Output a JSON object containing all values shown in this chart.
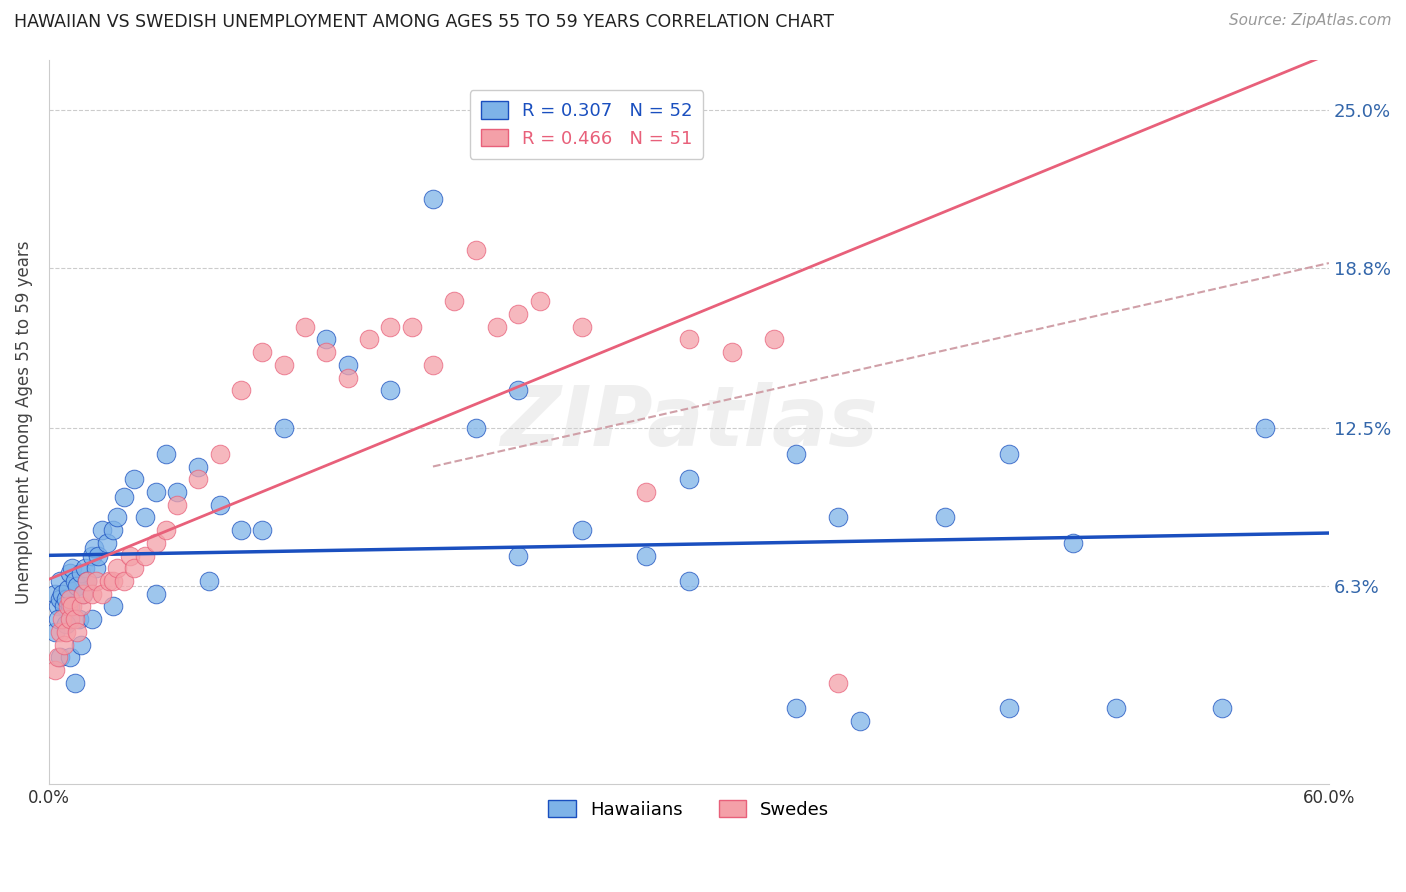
{
  "title": "HAWAIIAN VS SWEDISH UNEMPLOYMENT AMONG AGES 55 TO 59 YEARS CORRELATION CHART",
  "source": "Source: ZipAtlas.com",
  "ylabel": "Unemployment Among Ages 55 to 59 years",
  "ytick_labels": [
    "6.3%",
    "12.5%",
    "18.8%",
    "25.0%"
  ],
  "ytick_values": [
    6.3,
    12.5,
    18.8,
    25.0
  ],
  "xlim": [
    0.0,
    60.0
  ],
  "ylim": [
    -1.5,
    27.0
  ],
  "legend1_R": "0.307",
  "legend1_N": "52",
  "legend2_R": "0.466",
  "legend2_N": "51",
  "legend1_label": "Hawaiians",
  "legend2_label": "Swedes",
  "blue_color": "#7EB3E8",
  "pink_color": "#F4A0A8",
  "trend_blue": "#1A4FBF",
  "trend_pink": "#E8607A",
  "trend_dashed_color": "#D0A0A8",
  "background_color": "#FFFFFF",
  "watermark": "ZIPatlas",
  "hawaiian_x": [
    0.3,
    0.4,
    0.5,
    0.5,
    0.6,
    0.7,
    0.8,
    0.9,
    1.0,
    1.0,
    1.1,
    1.2,
    1.3,
    1.4,
    1.5,
    1.6,
    1.7,
    1.8,
    2.0,
    2.1,
    2.2,
    2.3,
    2.5,
    2.7,
    3.0,
    3.2,
    3.5,
    4.0,
    4.5,
    5.0,
    5.5,
    6.0,
    7.0,
    8.0,
    9.0,
    10.0,
    11.0,
    13.0,
    14.0,
    16.0,
    18.0,
    20.0,
    22.0,
    25.0,
    28.0,
    30.0,
    35.0,
    37.0,
    42.0,
    45.0,
    48.0,
    57.0
  ],
  "hawaiian_y": [
    6.0,
    5.5,
    5.8,
    6.5,
    6.0,
    5.5,
    5.8,
    6.2,
    5.5,
    6.8,
    7.0,
    6.5,
    6.3,
    5.0,
    6.8,
    6.0,
    7.0,
    6.5,
    7.5,
    7.8,
    7.0,
    7.5,
    8.5,
    8.0,
    8.5,
    9.0,
    9.8,
    10.5,
    9.0,
    10.0,
    11.5,
    10.0,
    11.0,
    9.5,
    8.5,
    8.5,
    12.5,
    16.0,
    15.0,
    14.0,
    21.5,
    12.5,
    14.0,
    8.5,
    7.5,
    10.5,
    11.5,
    9.0,
    9.0,
    11.5,
    8.0,
    12.5
  ],
  "hawaiian_x2": [
    0.3,
    0.4,
    0.5,
    0.8,
    1.0,
    1.2,
    1.5,
    2.0,
    3.0,
    5.0,
    7.5,
    22.0,
    30.0,
    35.0,
    38.0,
    45.0,
    50.0,
    55.0
  ],
  "hawaiian_y2": [
    4.5,
    5.0,
    3.5,
    4.8,
    3.5,
    2.5,
    4.0,
    5.0,
    5.5,
    6.0,
    6.5,
    7.5,
    6.5,
    1.5,
    1.0,
    1.5,
    1.5,
    1.5
  ],
  "swedish_x": [
    0.3,
    0.4,
    0.5,
    0.6,
    0.7,
    0.8,
    0.9,
    1.0,
    1.0,
    1.1,
    1.2,
    1.3,
    1.5,
    1.6,
    1.8,
    2.0,
    2.2,
    2.5,
    2.8,
    3.0,
    3.2,
    3.5,
    3.8,
    4.0,
    4.5,
    5.0,
    5.5,
    6.0,
    7.0,
    8.0,
    9.0,
    10.0,
    11.0,
    12.0,
    13.0,
    14.0,
    15.0,
    16.0,
    17.0,
    18.0,
    19.0,
    20.0,
    21.0,
    22.0,
    23.0,
    25.0,
    28.0,
    30.0,
    32.0,
    34.0,
    37.0
  ],
  "swedish_y": [
    3.0,
    3.5,
    4.5,
    5.0,
    4.0,
    4.5,
    5.5,
    5.0,
    5.8,
    5.5,
    5.0,
    4.5,
    5.5,
    6.0,
    6.5,
    6.0,
    6.5,
    6.0,
    6.5,
    6.5,
    7.0,
    6.5,
    7.5,
    7.0,
    7.5,
    8.0,
    8.5,
    9.5,
    10.5,
    11.5,
    14.0,
    15.5,
    15.0,
    16.5,
    15.5,
    14.5,
    16.0,
    16.5,
    16.5,
    15.0,
    17.5,
    19.5,
    16.5,
    17.0,
    17.5,
    16.5,
    10.0,
    16.0,
    15.5,
    16.0,
    2.5
  ]
}
